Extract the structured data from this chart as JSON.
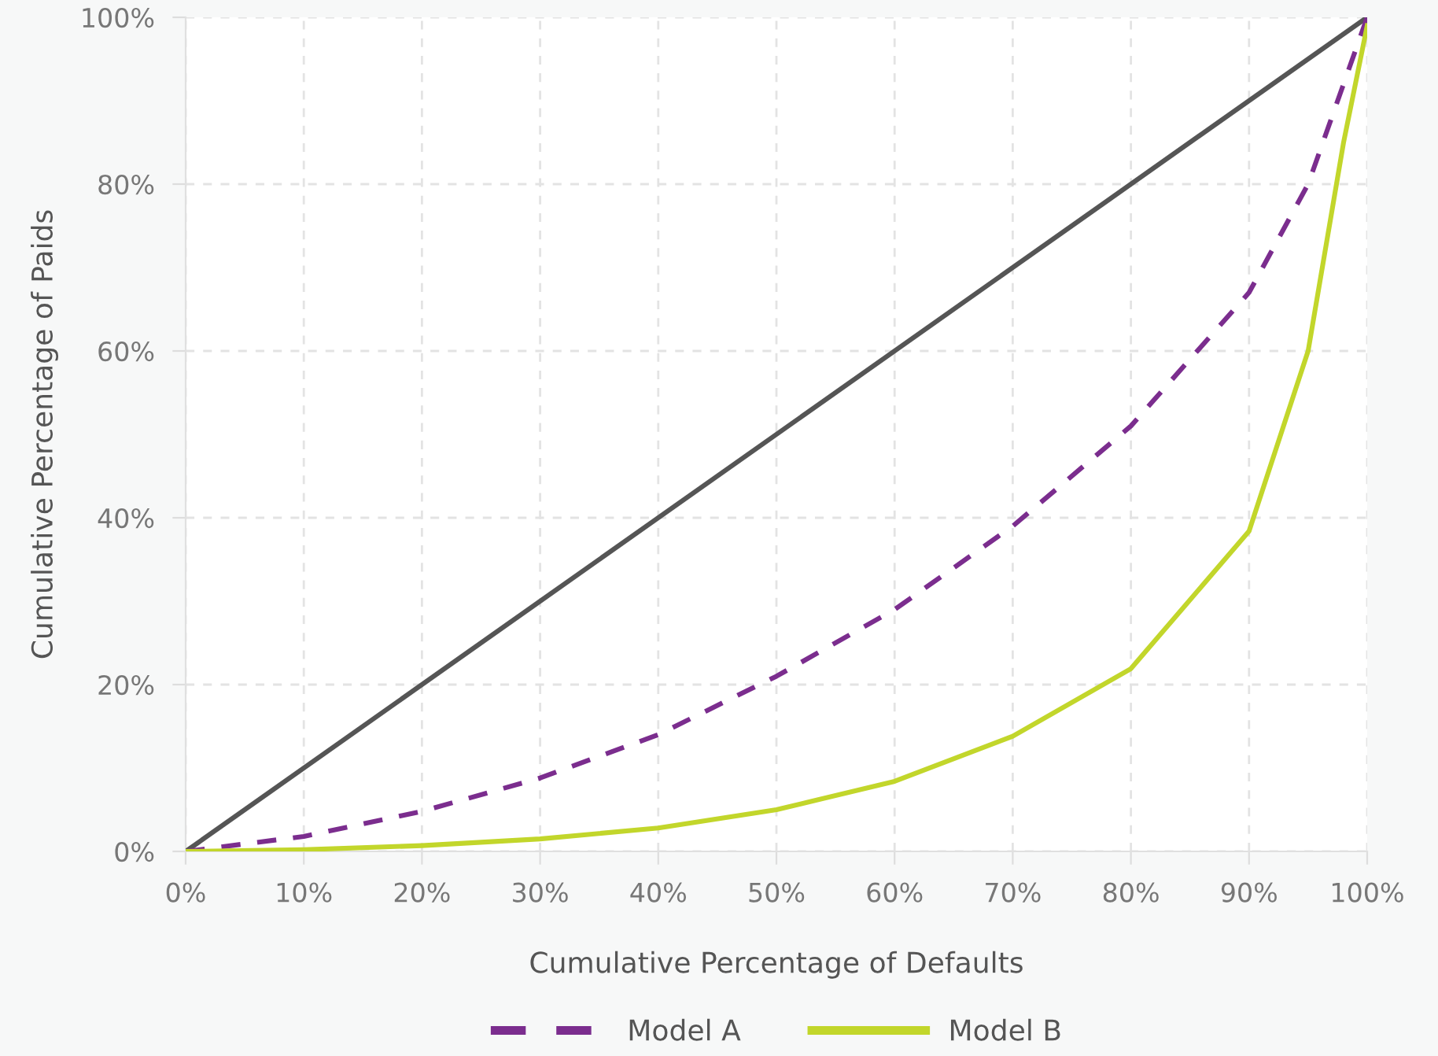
{
  "chart_data": {
    "type": "line",
    "xlabel": "Cumulative Percentage of Defaults",
    "ylabel": "Cumulative Percentage of Paids",
    "xlim": [
      0,
      100
    ],
    "ylim": [
      0,
      100
    ],
    "xticks": [
      {
        "value": 0,
        "label": "0%"
      },
      {
        "value": 10,
        "label": "10%"
      },
      {
        "value": 20,
        "label": "20%"
      },
      {
        "value": 30,
        "label": "30%"
      },
      {
        "value": 40,
        "label": "40%"
      },
      {
        "value": 50,
        "label": "50%"
      },
      {
        "value": 60,
        "label": "60%"
      },
      {
        "value": 70,
        "label": "70%"
      },
      {
        "value": 80,
        "label": "80%"
      },
      {
        "value": 90,
        "label": "90%"
      },
      {
        "value": 100,
        "label": "100%"
      }
    ],
    "yticks": [
      {
        "value": 0,
        "label": "0%"
      },
      {
        "value": 20,
        "label": "20%"
      },
      {
        "value": 40,
        "label": "40%"
      },
      {
        "value": 60,
        "label": "60%"
      },
      {
        "value": 80,
        "label": "80%"
      },
      {
        "value": 100,
        "label": "100%"
      }
    ],
    "grid": true,
    "legend": "bottom",
    "series": [
      {
        "color": "#555555",
        "line_style": "solid",
        "x": [
          0,
          100
        ],
        "values": [
          0,
          100
        ]
      },
      {
        "name": "Model A",
        "color": "#7b2d8e",
        "line_style": "dashed",
        "x": [
          0,
          10,
          20,
          30,
          40,
          50,
          60,
          70,
          80,
          90,
          95,
          98,
          100
        ],
        "values": [
          0,
          1.8,
          4.8,
          8.8,
          14,
          21,
          29,
          39,
          51,
          67,
          80,
          92,
          100
        ]
      },
      {
        "name": "Model B",
        "color": "#c2d62b",
        "line_style": "solid",
        "x": [
          0,
          10,
          20,
          30,
          40,
          50,
          60,
          70,
          80,
          90,
          95,
          98,
          100
        ],
        "values": [
          0,
          0.2,
          0.7,
          1.5,
          2.8,
          5,
          8.4,
          13.8,
          21.9,
          38.4,
          60,
          85,
          99
        ]
      }
    ]
  }
}
